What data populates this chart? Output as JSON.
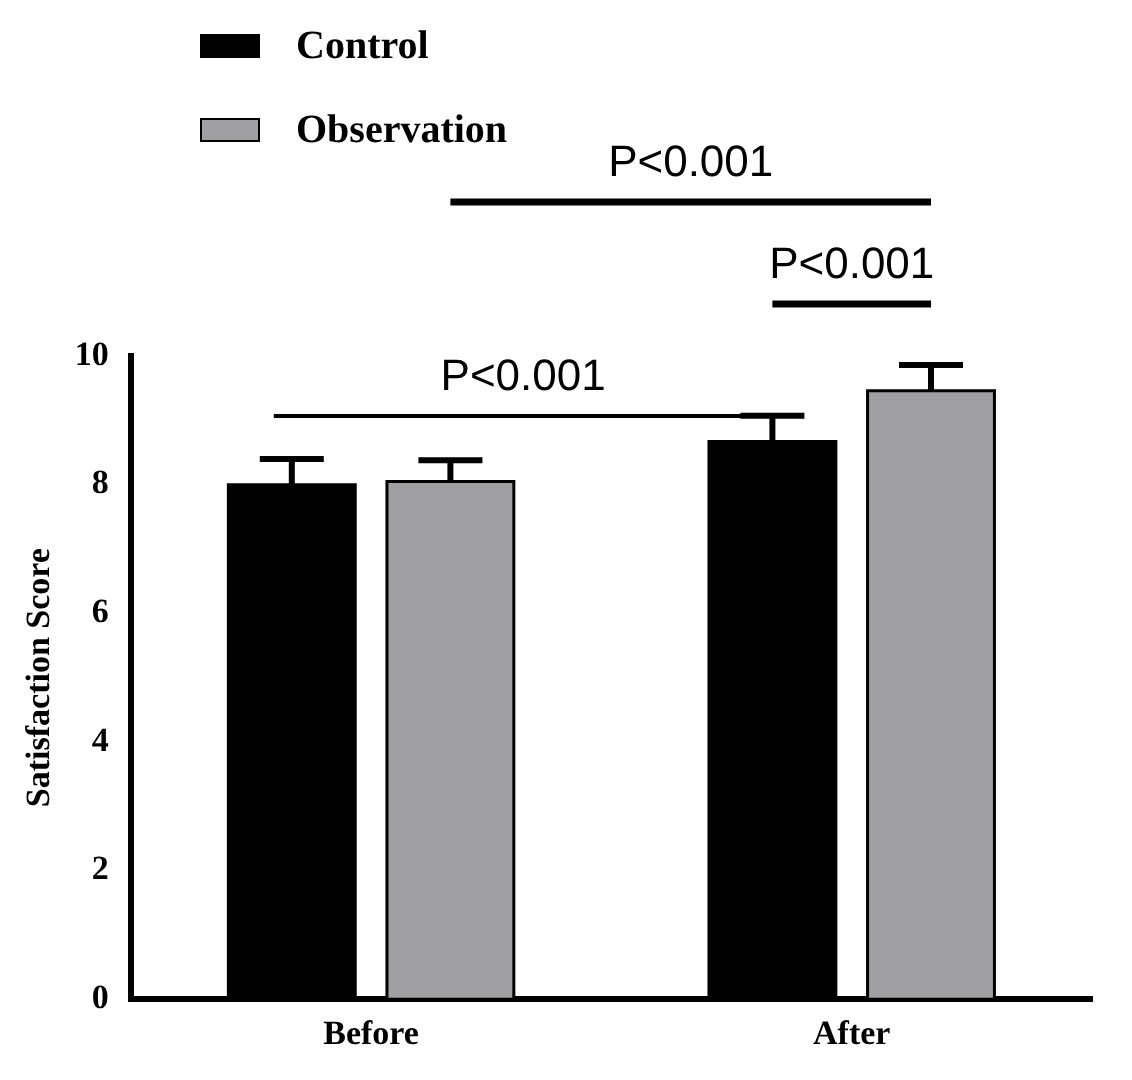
{
  "chart_data": {
    "type": "bar",
    "ylabel": "Satisfaction Score",
    "categories": [
      "Before",
      "After"
    ],
    "series": [
      {
        "name": "Control",
        "color": "#000000",
        "values": [
          8.0,
          8.67
        ],
        "errors": [
          0.4,
          0.4
        ]
      },
      {
        "name": "Observation",
        "color": "#a0a0a2",
        "values": [
          8.05,
          9.46
        ],
        "errors": [
          0.33,
          0.4
        ]
      }
    ],
    "ylim": [
      0,
      10
    ],
    "yticks": [
      0,
      2,
      4,
      6,
      8,
      10
    ],
    "grid": false,
    "legend": "top left",
    "annotations": [
      "P<0.001",
      "P<0.001",
      "P<0.001"
    ]
  }
}
